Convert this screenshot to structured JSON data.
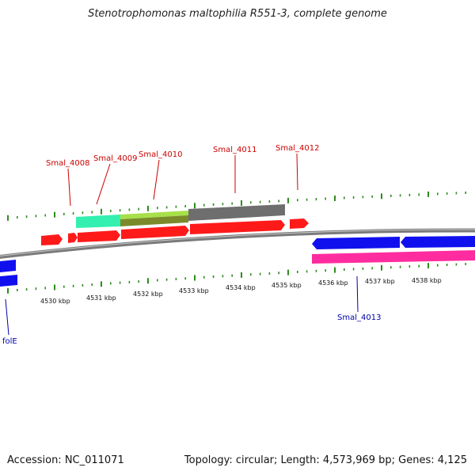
{
  "title": "Stenotrophomonas maltophilia R551-3, complete genome",
  "footer": {
    "accession": "Accession: NC_011071",
    "summary": "Topology: circular; Length: 4,573,969 bp; Genes: 4,125"
  },
  "colors": {
    "backbone": "#8a8a8a",
    "forward_ticks": "#2e8b1e",
    "reverse_ticks": "#2e8b1e",
    "forward_label": "#cc0000",
    "reverse_label": "#0000aa",
    "cds_red": "#ff1a1a",
    "cds_blue": "#1010ee",
    "teal": "#33f0b0",
    "yellowgreen": "#a7e04a",
    "olive": "#7a8a2a",
    "gray": "#6e6e6e",
    "magenta": "#ff2ca0"
  },
  "scale_labels": [
    "4530 kbp",
    "4531 kbp",
    "4532 kbp",
    "4533 kbp",
    "4534 kbp",
    "4535 kbp",
    "4536 kbp",
    "4537 kbp",
    "4538 kbp"
  ],
  "forward_gene_labels": [
    "Smal_4008",
    "Smal_4009",
    "Smal_4010",
    "Smal_4011",
    "Smal_4012"
  ],
  "reverse_gene_labels": [
    "Smal_4013",
    "folE"
  ]
}
